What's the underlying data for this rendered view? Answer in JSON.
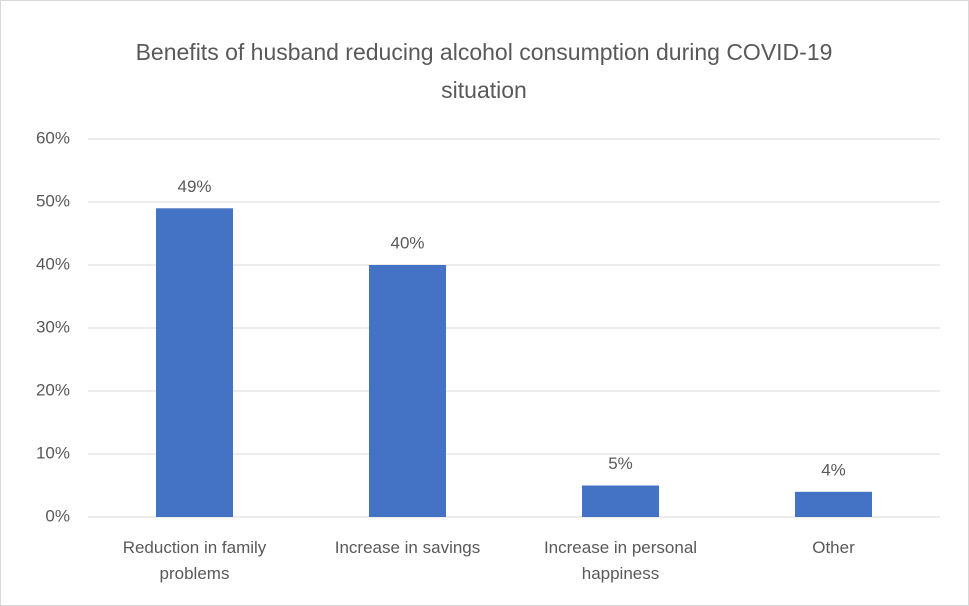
{
  "chart_data": {
    "type": "bar",
    "title": "Benefits of husband reducing alcohol consumption during COVID-19 situation",
    "categories": [
      "Reduction in family problems",
      "Increase in savings",
      "Increase in personal happiness",
      "Other"
    ],
    "values": [
      49,
      40,
      5,
      4
    ],
    "value_labels": [
      "49%",
      "40%",
      "5%",
      "4%"
    ],
    "color": "#4472c4",
    "ylim": [
      0,
      60
    ],
    "yticks": [
      {
        "value": 0,
        "label": "0%"
      },
      {
        "value": 10,
        "label": "10%"
      },
      {
        "value": 20,
        "label": "20%"
      },
      {
        "value": 30,
        "label": "30%"
      },
      {
        "value": 40,
        "label": "40%"
      },
      {
        "value": 50,
        "label": "50%"
      },
      {
        "value": 60,
        "label": "60%"
      }
    ],
    "grid": true
  }
}
